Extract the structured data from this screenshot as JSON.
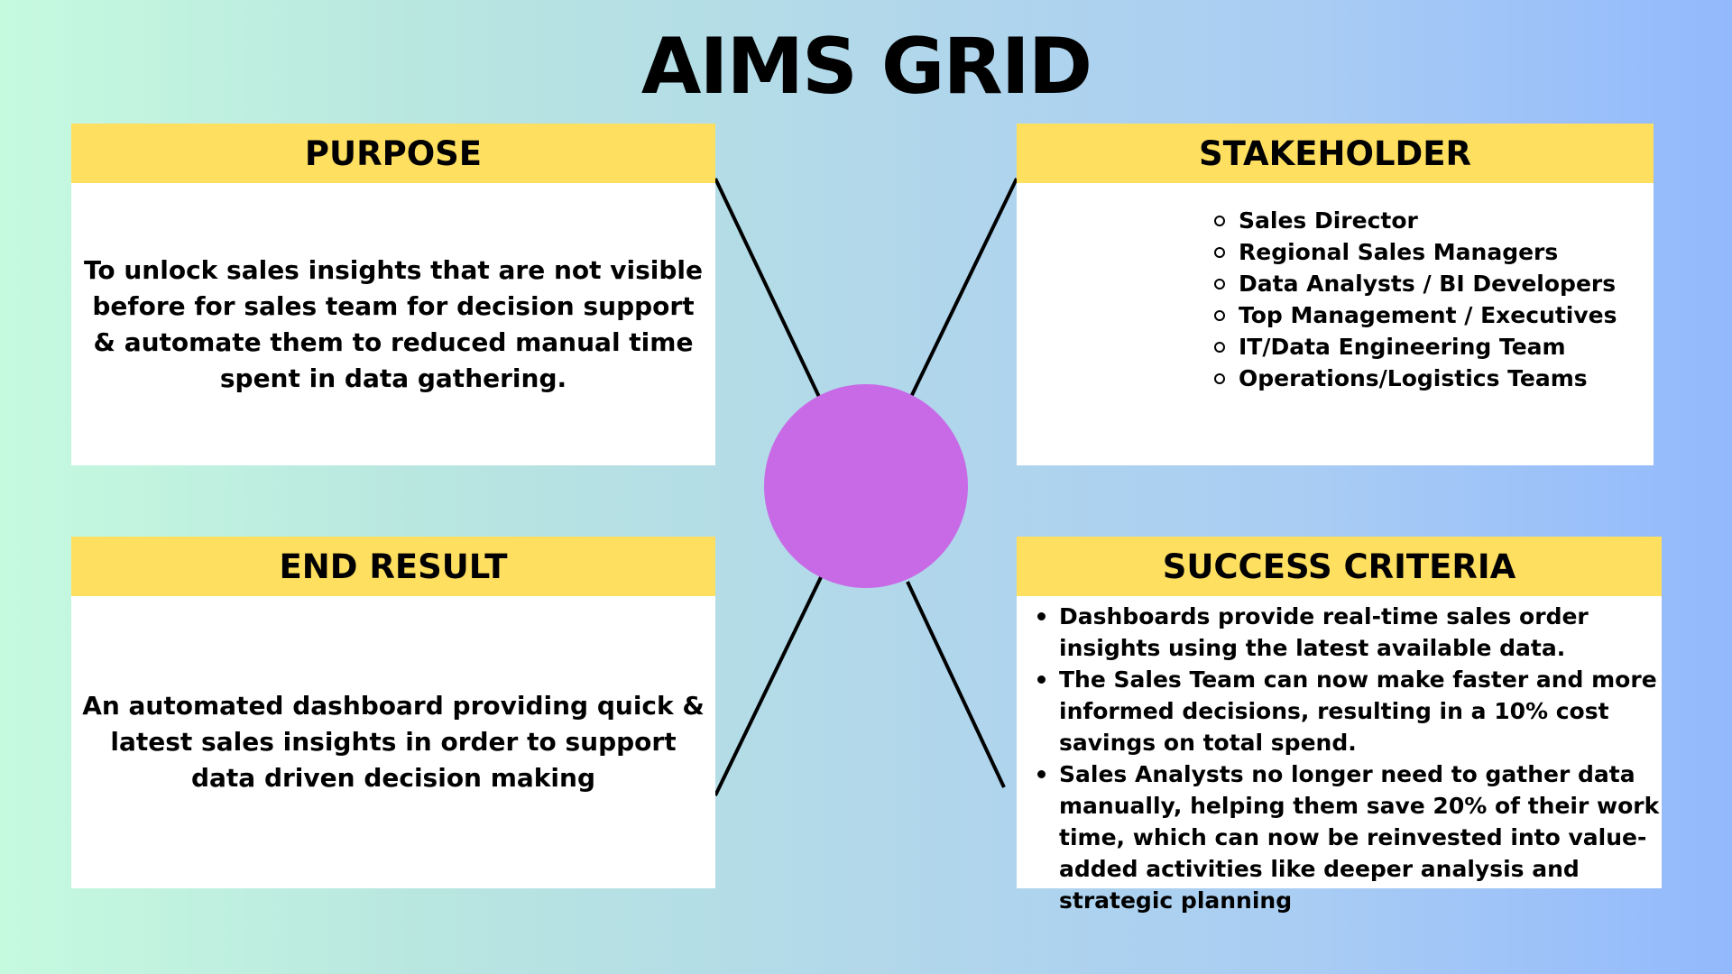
{
  "title": "AIMS GRID",
  "colors": {
    "header_fill": "#ffdf5f",
    "hub_fill": "#c86ae6",
    "box_fill": "#ffffff"
  },
  "purpose": {
    "header": "PURPOSE",
    "text": "To unlock sales insights that are not visible before for sales team for decision support & automate them to reduced manual time spent in data gathering."
  },
  "stakeholder": {
    "header": "STAKEHOLDER",
    "items": [
      "Sales Director",
      "Regional Sales Managers",
      "Data Analysts / BI Developers",
      "Top Management / Executives",
      "IT/Data Engineering Team",
      "Operations/Logistics Teams"
    ]
  },
  "end_result": {
    "header": "END RESULT",
    "text": "An automated dashboard providing quick & latest sales insights in order to support data driven decision making"
  },
  "success_criteria": {
    "header": "SUCCESS CRITERIA",
    "items": [
      "Dashboards provide real-time sales order insights using the latest available data.",
      "The Sales Team can now make faster and more informed decisions, resulting in a 10% cost savings on total spend.",
      "Sales Analysts no longer need to gather data manually, helping them save 20% of their work time, which can now be reinvested into value-added activities like deeper analysis and strategic planning"
    ]
  }
}
